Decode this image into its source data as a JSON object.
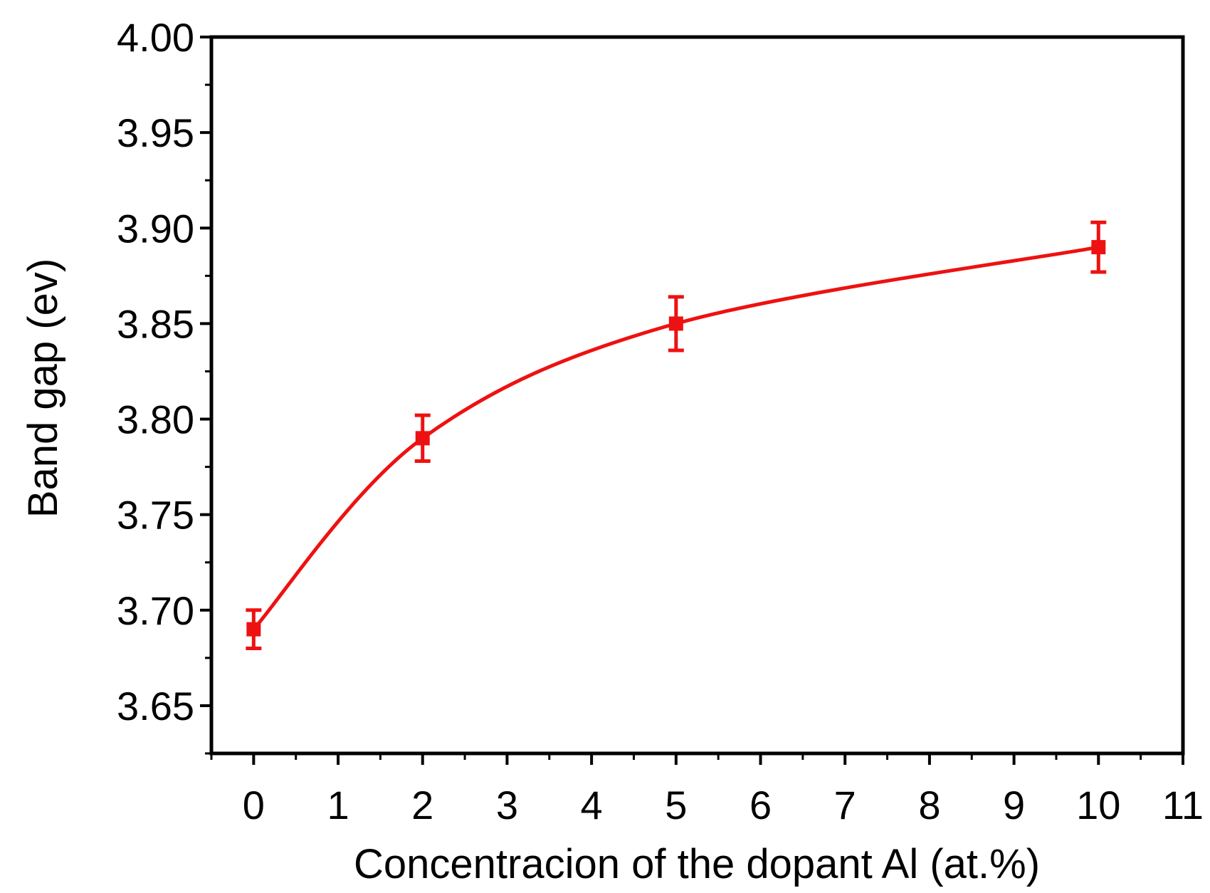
{
  "chart_data": {
    "type": "line",
    "title": "",
    "xlabel": "Concentracion of the dopant Al (at.%)",
    "ylabel": "Band gap (ev)",
    "xlim": [
      -0.5,
      11
    ],
    "ylim": [
      3.625,
      4.0
    ],
    "x_ticks": [
      "0",
      "1",
      "2",
      "3",
      "4",
      "5",
      "6",
      "7",
      "8",
      "9",
      "10",
      "11"
    ],
    "y_ticks": [
      "3.65",
      "3.70",
      "3.75",
      "3.80",
      "3.85",
      "3.90",
      "3.95",
      "4.00"
    ],
    "grid": false,
    "legend": "none",
    "series": [
      {
        "x": [
          0,
          2,
          5,
          10
        ],
        "y": [
          3.69,
          3.79,
          3.85,
          3.89
        ],
        "error": [
          0.01,
          0.012,
          0.014,
          0.013
        ],
        "color": "#ee1111",
        "marker": "square",
        "line": "smooth"
      }
    ]
  }
}
